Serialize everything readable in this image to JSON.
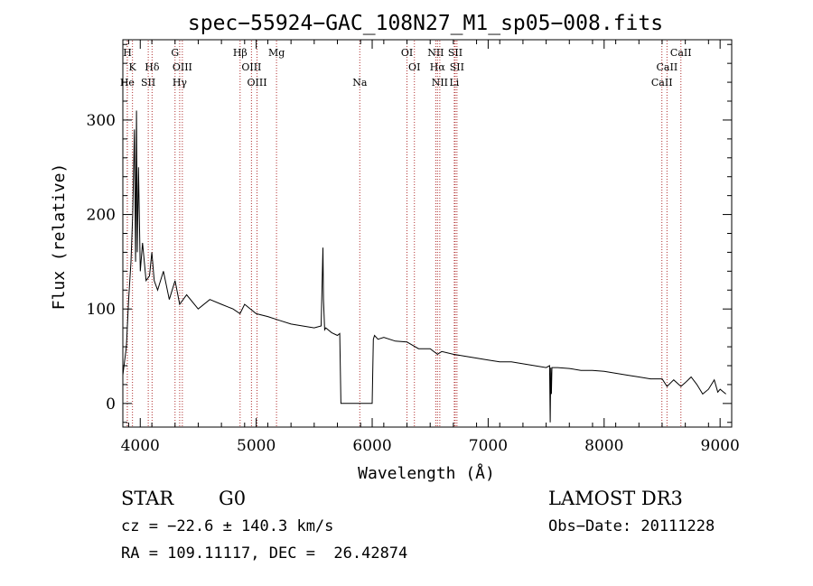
{
  "chart_data": {
    "type": "line",
    "title": "spec−55924−GAC_108N27_M1_sp05−008.fits",
    "xlabel": "Wavelength (Å)",
    "ylabel": "Flux (relative)",
    "xlim": [
      3850,
      9100
    ],
    "ylim": [
      -25,
      385
    ],
    "x_ticks": [
      4000,
      5000,
      6000,
      7000,
      8000,
      9000
    ],
    "y_ticks": [
      0,
      100,
      200,
      300
    ],
    "x_tick_labels": [
      "4000",
      "5000",
      "6000",
      "7000",
      "8000",
      "9000"
    ],
    "y_tick_labels": [
      "0",
      "100",
      "200",
      "300"
    ],
    "series": [
      {
        "name": "flux",
        "x": [
          3850,
          3880,
          3900,
          3920,
          3935,
          3950,
          3960,
          3968,
          3975,
          3985,
          4000,
          4020,
          4050,
          4080,
          4100,
          4120,
          4150,
          4200,
          4250,
          4300,
          4340,
          4400,
          4500,
          4600,
          4700,
          4800,
          4860,
          4900,
          5000,
          5100,
          5200,
          5300,
          5400,
          5500,
          5560,
          5575,
          5580,
          5590,
          5600,
          5650,
          5700,
          5720,
          5730,
          5740,
          6000,
          6010,
          6020,
          6050,
          6100,
          6200,
          6300,
          6400,
          6500,
          6563,
          6600,
          6700,
          6800,
          6900,
          7000,
          7100,
          7200,
          7300,
          7400,
          7500,
          7530,
          7535,
          7540,
          7545,
          7550,
          7600,
          7700,
          7800,
          7900,
          8000,
          8100,
          8200,
          8300,
          8400,
          8500,
          8542,
          8600,
          8662,
          8700,
          8750,
          8800,
          8850,
          8900,
          8950,
          8980,
          9000,
          9050
        ],
        "y": [
          30,
          60,
          110,
          150,
          200,
          290,
          150,
          310,
          160,
          250,
          140,
          170,
          130,
          135,
          160,
          130,
          120,
          140,
          110,
          130,
          105,
          115,
          100,
          110,
          105,
          100,
          95,
          105,
          95,
          92,
          88,
          84,
          82,
          80,
          82,
          165,
          110,
          78,
          80,
          75,
          72,
          74,
          0,
          0,
          0,
          68,
          72,
          68,
          70,
          66,
          65,
          58,
          58,
          52,
          55,
          52,
          50,
          48,
          46,
          44,
          44,
          42,
          40,
          38,
          40,
          -20,
          38,
          10,
          38,
          38,
          37,
          35,
          35,
          34,
          32,
          30,
          28,
          26,
          26,
          18,
          25,
          18,
          22,
          28,
          20,
          10,
          15,
          25,
          12,
          15,
          10
        ]
      }
    ],
    "lines": [
      {
        "label": "H",
        "wl": 3889,
        "tier": 1
      },
      {
        "label": "K",
        "wl": 3933,
        "tier": 2
      },
      {
        "label": "He",
        "wl": 3888,
        "tier": 3
      },
      {
        "label": "SII",
        "wl": 4069,
        "tier": 3
      },
      {
        "label": "Hδ",
        "wl": 4102,
        "tier": 2
      },
      {
        "label": "G",
        "wl": 4300,
        "tier": 1
      },
      {
        "label": "OIII",
        "wl": 4363,
        "tier": 2
      },
      {
        "label": "Hγ",
        "wl": 4340,
        "tier": 3
      },
      {
        "label": "Hβ",
        "wl": 4861,
        "tier": 1
      },
      {
        "label": "OIII",
        "wl": 4959,
        "tier": 2
      },
      {
        "label": "OIII",
        "wl": 5007,
        "tier": 3
      },
      {
        "label": "Mg",
        "wl": 5175,
        "tier": 1
      },
      {
        "label": "Na",
        "wl": 5893,
        "tier": 3
      },
      {
        "label": "OI",
        "wl": 6300,
        "tier": 1
      },
      {
        "label": "OI",
        "wl": 6364,
        "tier": 2
      },
      {
        "label": "NII",
        "wl": 6548,
        "tier": 1
      },
      {
        "label": "Hα",
        "wl": 6563,
        "tier": 2
      },
      {
        "label": "NII",
        "wl": 6583,
        "tier": 3
      },
      {
        "label": "SII",
        "wl": 6716,
        "tier": 1
      },
      {
        "label": "SII",
        "wl": 6731,
        "tier": 2
      },
      {
        "label": "Li",
        "wl": 6708,
        "tier": 3
      },
      {
        "label": "CaII",
        "wl": 8662,
        "tier": 1
      },
      {
        "label": "CaII",
        "wl": 8542,
        "tier": 2
      },
      {
        "label": "CaII",
        "wl": 8498,
        "tier": 3
      }
    ]
  },
  "info": {
    "class": "STAR",
    "subclass": "G0",
    "survey": "LAMOST DR3",
    "cz": "cz = −22.6 ± 140.3 km/s",
    "obs_date": "Obs−Date: 20111228",
    "radec": "RA = 109.11117, DEC =  26.42874"
  },
  "colors": {
    "line_marker": "#b03030",
    "spectrum": "#000000"
  }
}
